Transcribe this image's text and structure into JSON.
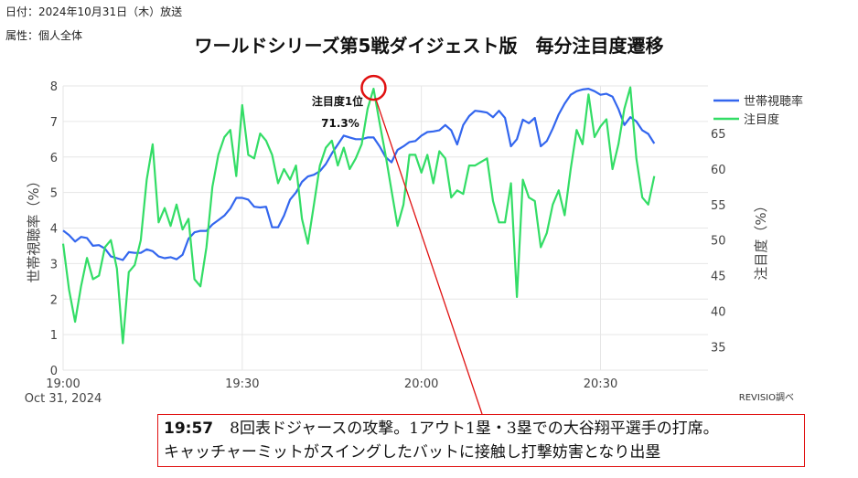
{
  "meta": {
    "date": "日付：2024年10月31日（木）放送",
    "attr": "属性：個人全体"
  },
  "title": "ワールドシリーズ第5戦ダイジェスト版　毎分注目度遷移",
  "source": "REVISIO調べ",
  "annotation": {
    "label": "注目度1位",
    "value": "71.3%"
  },
  "note": {
    "time": "19:57",
    "line1": "8回表ドジャースの攻撃。1アウト1塁・3塁での大谷翔平選手の打席。",
    "line2": "キャッチャーミットがスイングしたバットに接触し打撃妨害となり出塁"
  },
  "colors": {
    "viewing": "#3366ee",
    "attention": "#33dd66",
    "highlight": "#e01010",
    "grid": "#e6e6e6"
  },
  "chart_data": {
    "type": "line",
    "x_start": "19:00",
    "x_end": "20:48",
    "x_ticks": [
      "19:00",
      "19:30",
      "20:00",
      "20:30"
    ],
    "x_subtick": "Oct 31, 2024",
    "y_left": {
      "label": "世帯視聴率（%）",
      "ylim": [
        0,
        8
      ],
      "ticks": [
        "0",
        "1",
        "2",
        "3",
        "4",
        "5",
        "6",
        "7",
        "8"
      ]
    },
    "y_right": {
      "label": "注目度（%）",
      "ylim": [
        31.7,
        71.7
      ],
      "ticks": [
        "35",
        "40",
        "45",
        "50",
        "55",
        "60",
        "65"
      ]
    },
    "series": [
      {
        "name": "世帯視聴率",
        "axis": "left",
        "values": [
          3.93,
          3.8,
          3.62,
          3.75,
          3.72,
          3.5,
          3.52,
          3.42,
          3.2,
          3.15,
          3.1,
          3.32,
          3.3,
          3.3,
          3.4,
          3.35,
          3.2,
          3.15,
          3.18,
          3.12,
          3.25,
          3.7,
          3.88,
          3.92,
          3.92,
          4.1,
          4.22,
          4.35,
          4.55,
          4.85,
          4.85,
          4.8,
          4.6,
          4.58,
          4.6,
          4.02,
          4.02,
          4.35,
          4.8,
          5.0,
          5.3,
          5.45,
          5.5,
          5.6,
          5.8,
          6.1,
          6.35,
          6.6,
          6.55,
          6.5,
          6.5,
          6.55,
          6.55,
          6.3,
          6.0,
          5.85,
          6.2,
          6.3,
          6.42,
          6.45,
          6.6,
          6.7,
          6.72,
          6.75,
          6.9,
          6.75,
          6.35,
          6.9,
          7.15,
          7.3,
          7.28,
          7.25,
          7.12,
          7.3,
          7.1,
          6.3,
          6.5,
          7.05,
          6.95,
          7.1,
          6.3,
          6.45,
          6.8,
          7.2,
          7.5,
          7.75,
          7.85,
          7.9,
          7.92,
          7.85,
          7.75,
          7.78,
          7.7,
          7.35,
          6.9,
          7.12,
          7.0,
          6.75,
          6.65,
          6.38
        ]
      },
      {
        "name": "注目度",
        "axis": "right",
        "values": [
          49.5,
          43.0,
          38.5,
          43.5,
          47.5,
          44.5,
          45.0,
          49.0,
          50.0,
          46.0,
          35.5,
          45.5,
          46.5,
          50.0,
          58.5,
          63.5,
          52.5,
          54.5,
          52.0,
          55.0,
          51.5,
          53.0,
          44.5,
          43.5,
          49.0,
          57.5,
          62.0,
          64.5,
          65.5,
          59.0,
          69.0,
          62.0,
          61.5,
          65.0,
          64.0,
          62.0,
          58.0,
          60.0,
          58.5,
          60.5,
          53.0,
          49.5,
          55.0,
          60.5,
          63.0,
          64.0,
          60.5,
          63.0,
          60.0,
          61.5,
          63.5,
          68.5,
          71.3,
          66.5,
          62.0,
          57.0,
          52.0,
          55.0,
          62.0,
          62.0,
          59.5,
          62.0,
          58.0,
          62.5,
          61.5,
          56.0,
          57.0,
          56.5,
          60.5,
          60.5,
          61.0,
          61.5,
          55.5,
          52.5,
          52.5,
          58.0,
          42.0,
          58.5,
          56.0,
          55.5,
          49.0,
          51.0,
          55.0,
          57.0,
          53.5,
          60.0,
          65.5,
          63.5,
          70.5,
          64.5,
          66.0,
          67.0,
          60.0,
          63.5,
          68.5,
          71.5,
          61.5,
          56.0,
          55.0,
          59.0
        ]
      }
    ],
    "legend_position": "top-right",
    "grid": true
  }
}
